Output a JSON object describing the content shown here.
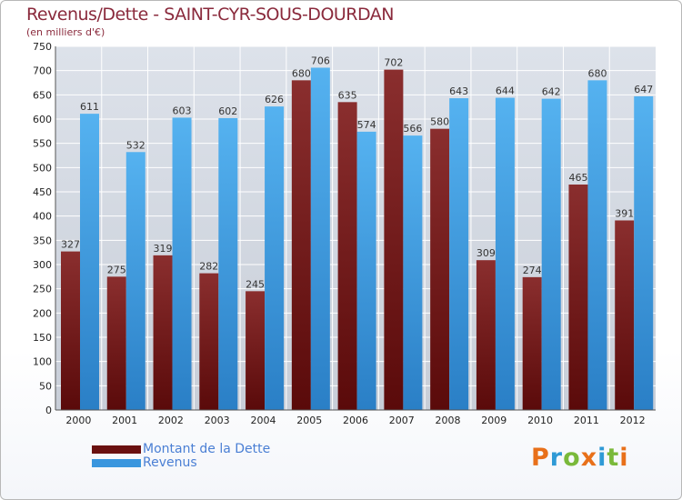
{
  "chart_data": {
    "type": "bar",
    "title": "Revenus/Dette - SAINT-CYR-SOUS-DOURDAN",
    "subtitle": "(en milliers d'€)",
    "categories": [
      "2000",
      "2001",
      "2002",
      "2003",
      "2004",
      "2005",
      "2006",
      "2007",
      "2008",
      "2009",
      "2010",
      "2011",
      "2012"
    ],
    "series": [
      {
        "name": "Montant de la Dette",
        "color": "#7a1a1a",
        "values": [
          327,
          275,
          319,
          282,
          245,
          680,
          635,
          702,
          580,
          309,
          274,
          465,
          391
        ]
      },
      {
        "name": "Revenus",
        "color": "#4aa3e8",
        "values": [
          611,
          532,
          603,
          602,
          626,
          706,
          574,
          566,
          643,
          644,
          642,
          680,
          647
        ]
      }
    ],
    "ylim": [
      0,
      750
    ],
    "yticks": [
      0,
      50,
      100,
      150,
      200,
      250,
      300,
      350,
      400,
      450,
      500,
      550,
      600,
      650,
      700,
      750
    ],
    "grid": true,
    "legend": "bottom-left"
  },
  "branding": {
    "logo_letters": [
      {
        "char": "P",
        "color": "#e8701a"
      },
      {
        "char": "r",
        "color": "#2f9ad6"
      },
      {
        "char": "o",
        "color": "#7ab93a"
      },
      {
        "char": "x",
        "color": "#e8701a"
      },
      {
        "char": "i",
        "color": "#2f9ad6"
      },
      {
        "char": "t",
        "color": "#7ab93a"
      },
      {
        "char": "i",
        "color": "#e8701a"
      }
    ]
  }
}
